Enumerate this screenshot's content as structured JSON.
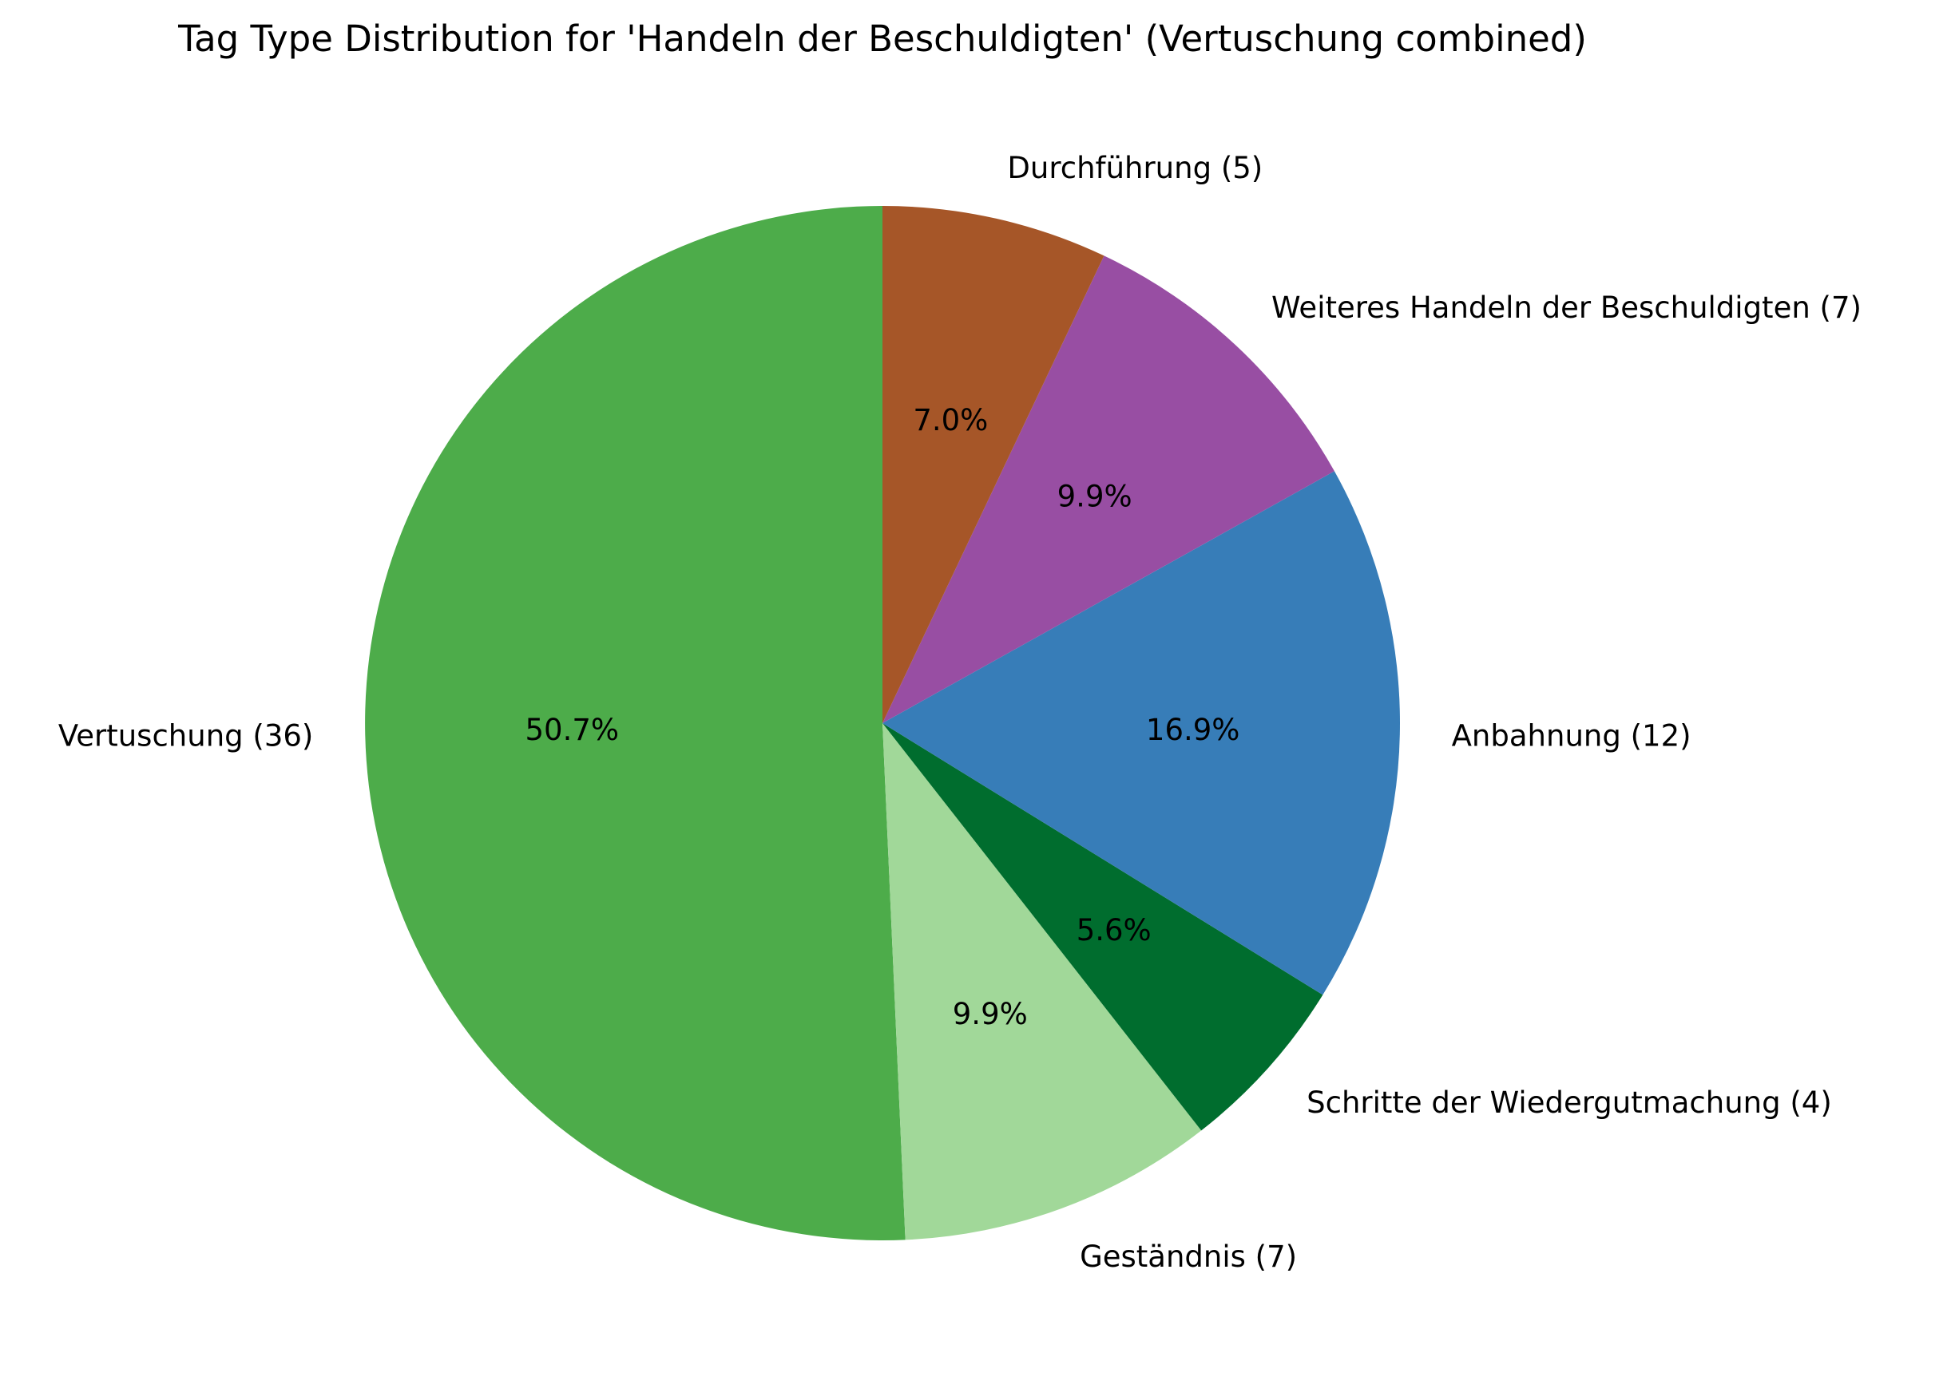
{
  "chart_data": {
    "type": "pie",
    "title": "Tag Type Distribution for 'Handeln der Beschuldigten' (Vertuschung combined)",
    "start_angle_deg": 90,
    "direction": "counterclockwise",
    "slices": [
      {
        "label": "Vertuschung (36)",
        "value": 36,
        "percent_label": "50.7%",
        "color": "#4dac4a"
      },
      {
        "label": "Geständnis (7)",
        "value": 7,
        "percent_label": "9.9%",
        "color": "#a1d899"
      },
      {
        "label": "Schritte der Wiedergutmachung (4)",
        "value": 4,
        "percent_label": "5.6%",
        "color": "#006d2e"
      },
      {
        "label": "Anbahnung (12)",
        "value": 12,
        "percent_label": "16.9%",
        "color": "#377db8"
      },
      {
        "label": "Weiteres Handeln der Beschuldigten (7)",
        "value": 7,
        "percent_label": "9.9%",
        "color": "#984ea3"
      },
      {
        "label": "Durchführung (5)",
        "value": 5,
        "percent_label": "7.0%",
        "color": "#a65628"
      }
    ]
  }
}
